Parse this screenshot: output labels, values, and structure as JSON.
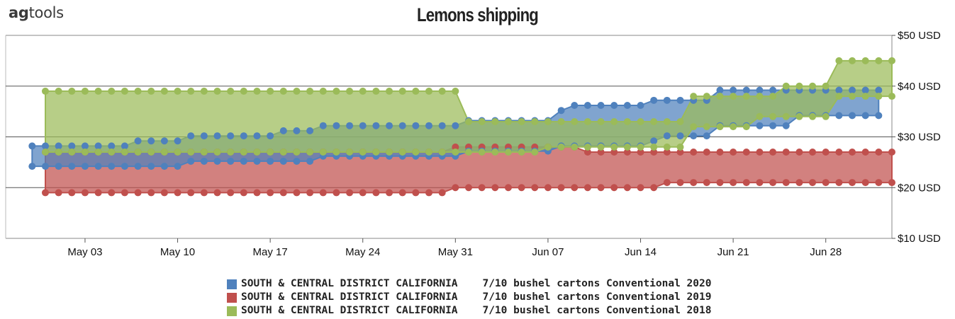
{
  "header": {
    "logo_prefix": "ag",
    "logo_suffix": "tools"
  },
  "chart_data": {
    "type": "area",
    "title": "Lemons shipping",
    "xlabel": "",
    "ylabel": "",
    "x_ticks": [
      "May 03",
      "May 10",
      "May 17",
      "May 24",
      "May 31",
      "Jun 07",
      "Jun 14",
      "Jun 21",
      "Jun 28"
    ],
    "y_ticks": [
      "$10 USD",
      "$20 USD",
      "$30 USD",
      "$40 USD",
      "$50 USD"
    ],
    "ylim": [
      10,
      50
    ],
    "x_day_range": [
      "Apr 27",
      "Jul 03"
    ],
    "grid": true,
    "legend_position": "bottom",
    "series": [
      {
        "name": "SOUTH & CENTRAL DISTRICT CALIFORNIA    7/10 bushel cartons Conventional 2020",
        "color": "#4f81bd",
        "x": [
          "Apr 29",
          "Apr 30",
          "May 01",
          "May 02",
          "May 03",
          "May 04",
          "May 05",
          "May 06",
          "May 07",
          "May 08",
          "May 09",
          "May 10",
          "May 11",
          "May 12",
          "May 13",
          "May 14",
          "May 15",
          "May 16",
          "May 17",
          "May 18",
          "May 19",
          "May 20",
          "May 21",
          "May 22",
          "May 23",
          "May 24",
          "May 25",
          "May 26",
          "May 27",
          "May 28",
          "May 29",
          "May 30",
          "May 31",
          "Jun 01",
          "Jun 02",
          "Jun 03",
          "Jun 04",
          "Jun 05",
          "Jun 06",
          "Jun 07",
          "Jun 08",
          "Jun 09",
          "Jun 10",
          "Jun 11",
          "Jun 12",
          "Jun 13",
          "Jun 14",
          "Jun 15",
          "Jun 16",
          "Jun 17",
          "Jun 18",
          "Jun 19",
          "Jun 20",
          "Jun 21",
          "Jun 22",
          "Jun 23",
          "Jun 24",
          "Jun 25",
          "Jun 26",
          "Jun 27",
          "Jun 28",
          "Jun 29",
          "Jun 30",
          "Jul 01",
          "Jul 02"
        ],
        "high": [
          28.2,
          28.2,
          28.2,
          28.2,
          28.2,
          28.2,
          28.2,
          28.2,
          29.2,
          29.2,
          29.2,
          29.2,
          30.2,
          30.2,
          30.2,
          30.2,
          30.2,
          30.2,
          30.2,
          31.2,
          31.2,
          31.2,
          32.2,
          32.2,
          32.2,
          32.2,
          32.2,
          32.2,
          32.2,
          32.2,
          32.2,
          32.2,
          32.2,
          33.2,
          33.2,
          33.2,
          33.2,
          33.2,
          33.2,
          33.2,
          35.2,
          36.2,
          36.2,
          36.2,
          36.2,
          36.2,
          36.2,
          37.2,
          37.2,
          37.2,
          37.2,
          37.2,
          39.2,
          39.2,
          39.2,
          39.2,
          39.2,
          39.2,
          39.2,
          39.2,
          39.2,
          39.2,
          39.2,
          39.2,
          39.2
        ],
        "low": [
          24.2,
          24.2,
          24.2,
          24.2,
          24.2,
          24.2,
          24.2,
          24.2,
          24.2,
          24.2,
          24.2,
          24.2,
          25.2,
          25.2,
          25.2,
          25.2,
          25.2,
          25.2,
          25.2,
          25.2,
          25.2,
          25.2,
          26.2,
          26.2,
          26.2,
          26.2,
          26.2,
          26.2,
          26.2,
          26.2,
          26.2,
          26.2,
          26.2,
          27.2,
          27.2,
          27.2,
          27.2,
          27.2,
          27.2,
          27.2,
          28.2,
          28.2,
          28.2,
          28.2,
          28.2,
          28.2,
          28.2,
          29.2,
          30.2,
          30.2,
          30.2,
          30.2,
          32.2,
          32.2,
          32.2,
          32.2,
          32.2,
          32.2,
          34.2,
          34.2,
          34.2,
          34.2,
          34.2,
          34.2,
          34.2
        ]
      },
      {
        "name": "SOUTH & CENTRAL DISTRICT CALIFORNIA    7/10 bushel cartons Conventional 2019",
        "color": "#c0504d",
        "x": [
          "Apr 30",
          "May 01",
          "May 02",
          "May 03",
          "May 04",
          "May 05",
          "May 06",
          "May 07",
          "May 08",
          "May 09",
          "May 10",
          "May 11",
          "May 12",
          "May 13",
          "May 14",
          "May 15",
          "May 16",
          "May 17",
          "May 18",
          "May 19",
          "May 20",
          "May 21",
          "May 22",
          "May 23",
          "May 24",
          "May 25",
          "May 26",
          "May 27",
          "May 28",
          "May 29",
          "May 30",
          "May 31",
          "Jun 01",
          "Jun 02",
          "Jun 03",
          "Jun 04",
          "Jun 05",
          "Jun 06",
          "Jun 07",
          "Jun 08",
          "Jun 09",
          "Jun 10",
          "Jun 11",
          "Jun 12",
          "Jun 13",
          "Jun 14",
          "Jun 15",
          "Jun 16",
          "Jun 17",
          "Jun 18",
          "Jun 19",
          "Jun 20",
          "Jun 21",
          "Jun 22",
          "Jun 23",
          "Jun 24",
          "Jun 25",
          "Jun 26",
          "Jun 27",
          "Jun 28",
          "Jun 29",
          "Jun 30",
          "Jul 01",
          "Jul 02",
          "Jul 03"
        ],
        "high": [
          27,
          27,
          27,
          27,
          27,
          27,
          27,
          27,
          27,
          27,
          27,
          27,
          27,
          27,
          27,
          27,
          27,
          27,
          27,
          27,
          27,
          27,
          27,
          27,
          27,
          27,
          27,
          27,
          27,
          27,
          27,
          28,
          28,
          28,
          28,
          28,
          28,
          28,
          28,
          28,
          28,
          27,
          27,
          27,
          27,
          27,
          27,
          27,
          27,
          27,
          27,
          27,
          27,
          27,
          27,
          27,
          27,
          27,
          27,
          27,
          27,
          27,
          27,
          27,
          27
        ],
        "low": [
          19,
          19,
          19,
          19,
          19,
          19,
          19,
          19,
          19,
          19,
          19,
          19,
          19,
          19,
          19,
          19,
          19,
          19,
          19,
          19,
          19,
          19,
          19,
          19,
          19,
          19,
          19,
          19,
          19,
          19,
          19,
          20,
          20,
          20,
          20,
          20,
          20,
          20,
          20,
          20,
          20,
          20,
          20,
          20,
          20,
          20,
          20,
          21,
          21,
          21,
          21,
          21,
          21,
          21,
          21,
          21,
          21,
          21,
          21,
          21,
          21,
          21,
          21,
          21,
          21
        ]
      },
      {
        "name": "SOUTH & CENTRAL DISTRICT CALIFORNIA    7/10 bushel cartons Conventional 2018",
        "color": "#9bbb59",
        "x": [
          "Apr 30",
          "May 01",
          "May 02",
          "May 03",
          "May 04",
          "May 05",
          "May 06",
          "May 07",
          "May 08",
          "May 09",
          "May 10",
          "May 11",
          "May 12",
          "May 13",
          "May 14",
          "May 15",
          "May 16",
          "May 17",
          "May 18",
          "May 19",
          "May 20",
          "May 21",
          "May 22",
          "May 23",
          "May 24",
          "May 25",
          "May 26",
          "May 27",
          "May 28",
          "May 29",
          "May 30",
          "May 31",
          "Jun 01",
          "Jun 02",
          "Jun 03",
          "Jun 04",
          "Jun 05",
          "Jun 06",
          "Jun 07",
          "Jun 08",
          "Jun 09",
          "Jun 10",
          "Jun 11",
          "Jun 12",
          "Jun 13",
          "Jun 14",
          "Jun 15",
          "Jun 16",
          "Jun 17",
          "Jun 18",
          "Jun 19",
          "Jun 20",
          "Jun 21",
          "Jun 22",
          "Jun 23",
          "Jun 24",
          "Jun 25",
          "Jun 26",
          "Jun 27",
          "Jun 28",
          "Jun 29",
          "Jun 30",
          "Jul 01",
          "Jul 02",
          "Jul 03"
        ],
        "high": [
          39,
          39,
          39,
          39,
          39,
          39,
          39,
          39,
          39,
          39,
          39,
          39,
          39,
          39,
          39,
          39,
          39,
          39,
          39,
          39,
          39,
          39,
          39,
          39,
          39,
          39,
          39,
          39,
          39,
          39,
          39,
          39,
          33,
          33,
          33,
          33,
          33,
          33,
          33,
          33,
          33,
          33,
          33,
          33,
          33,
          33,
          33,
          33,
          33,
          38,
          38,
          38,
          38,
          38,
          38,
          38,
          40,
          40,
          40,
          40,
          45,
          45,
          45,
          45,
          45
        ],
        "low": [
          27,
          27,
          27,
          27,
          27,
          27,
          27,
          27,
          27,
          27,
          27,
          27,
          27,
          27,
          27,
          27,
          27,
          27,
          27,
          27,
          27,
          27,
          27,
          27,
          27,
          27,
          27,
          27,
          27,
          27,
          27,
          27,
          27,
          27,
          27,
          27,
          27,
          27,
          28,
          28,
          28,
          28,
          28,
          28,
          28,
          28,
          28,
          28,
          28,
          32,
          32,
          32,
          32,
          32,
          34,
          34,
          34,
          34,
          34,
          34,
          38,
          38,
          38,
          38,
          38
        ]
      }
    ]
  }
}
